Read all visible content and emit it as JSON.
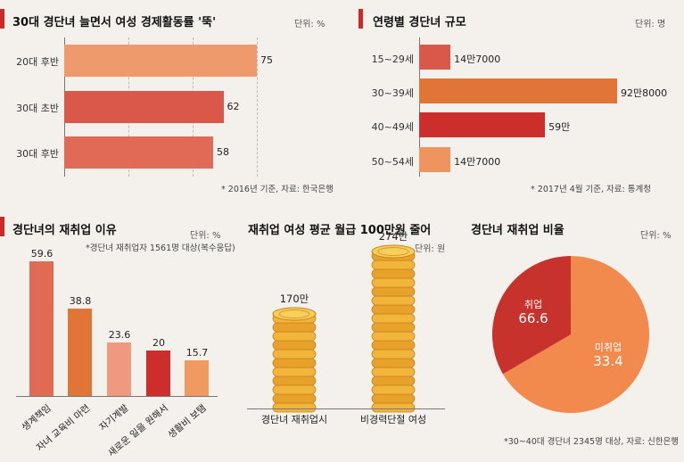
{
  "panel1": {
    "title": "30대 경단녀 늘면서 여성 경제활동률 '뚝'",
    "unit": "단위: %",
    "source": "* 2016년 기준, 자료: 한국은행",
    "chart_data": {
      "type": "bar",
      "orientation": "horizontal",
      "categories": [
        "20대 후반",
        "30대 초반",
        "30대 후반"
      ],
      "values": [
        75,
        62,
        58
      ],
      "value_labels": [
        "75",
        "62",
        "58"
      ],
      "colors": [
        "#ef9a6c",
        "#d9584a",
        "#e06a55"
      ],
      "xlim": [
        0,
        100
      ]
    }
  },
  "panel2": {
    "title": "연령별 경단녀 규모",
    "unit": "단위: 명",
    "source": "* 2017년 4월 기준, 자료: 통계청",
    "chart_data": {
      "type": "bar",
      "orientation": "horizontal",
      "categories": [
        "15~29세",
        "30~39세",
        "40~49세",
        "50~54세"
      ],
      "values": [
        147000,
        928000,
        590000,
        147000
      ],
      "value_labels": [
        "14만7000",
        "92만8000",
        "59만",
        "14만7000"
      ],
      "colors": [
        "#d9584a",
        "#e07537",
        "#cc2f2b",
        "#ef935f"
      ]
    }
  },
  "panel3": {
    "title": "경단녀의 재취업 이유",
    "unit": "단위: %",
    "note": "*경단녀 재취업자 1561명 대상(복수응답)",
    "chart_data": {
      "type": "bar",
      "orientation": "vertical",
      "categories": [
        "생계책임",
        "자녀 교육비 마련",
        "자기계발",
        "새로운 일을 원해서",
        "생활비 보탬"
      ],
      "values": [
        59.6,
        38.8,
        23.6,
        20,
        15.7
      ],
      "value_labels": [
        "59.6",
        "38.8",
        "23.6",
        "20",
        "15.7"
      ],
      "colors": [
        "#df6b52",
        "#e07537",
        "#ef9a80",
        "#cc2f2b",
        "#ef9a60"
      ],
      "ylim": [
        0,
        65
      ]
    }
  },
  "panel4": {
    "title": "재취업 여성 평균 월급 100만원 줄어",
    "unit": "단위: 원",
    "chart_data": {
      "type": "bar",
      "style": "coin-stack",
      "categories": [
        "경단녀 재취업시",
        "비경력단절 여성"
      ],
      "values": [
        1700000,
        2740000
      ],
      "value_labels": [
        "170만",
        "274만"
      ]
    }
  },
  "panel5": {
    "title": "경단녀 재취업 비율",
    "unit": "단위: %",
    "source": "*30~40대 경단녀 2345명 대상, 자료: 신한은행",
    "chart_data": {
      "type": "pie",
      "slices": [
        {
          "label": "취업",
          "value": 66.6,
          "color": "#c8322c"
        },
        {
          "label": "미취업",
          "value": 33.4,
          "color": "#f2894d"
        }
      ]
    }
  }
}
